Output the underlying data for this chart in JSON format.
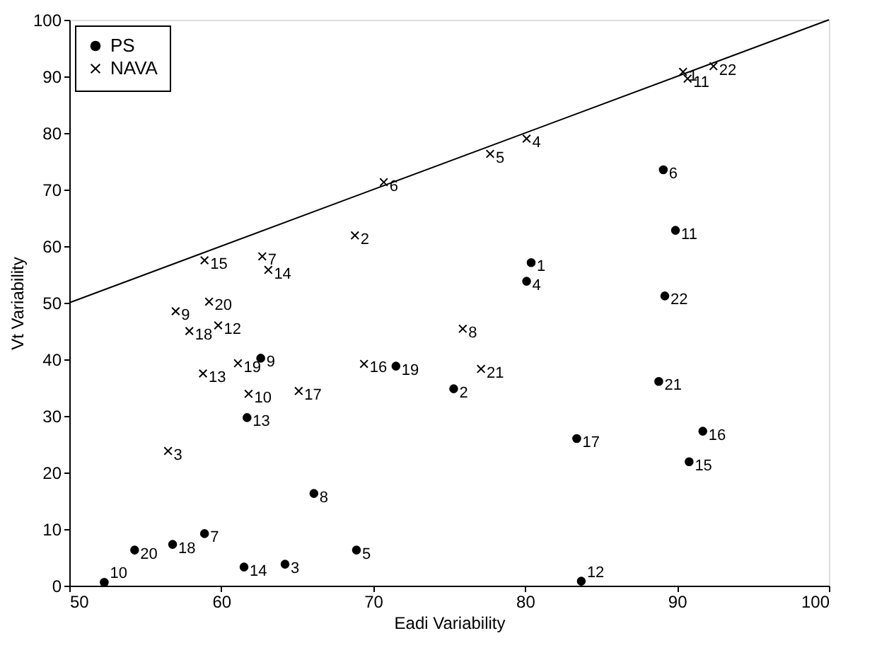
{
  "chart_data": {
    "type": "scatter",
    "xlabel": "Eadi Variability",
    "ylabel": "Vt Variability",
    "xlim": [
      50,
      100
    ],
    "ylim": [
      0,
      100
    ],
    "xticks": [
      50,
      60,
      70,
      80,
      90,
      100
    ],
    "yticks": [
      0,
      10,
      20,
      30,
      40,
      50,
      60,
      70,
      80,
      90,
      100
    ],
    "grid": false,
    "legend": "top left",
    "series": [
      {
        "name": "PS",
        "color": "#000000",
        "marker": "circle",
        "x": [
          80.4,
          75.3,
          64.2,
          80.1,
          68.9,
          89.1,
          58.9,
          66.1,
          62.6,
          52.3,
          89.9,
          83.7,
          61.7,
          61.5,
          90.8,
          91.7,
          83.4,
          56.8,
          71.5,
          54.3,
          88.8,
          89.2
        ],
        "values": [
          57.1,
          34.8,
          3.8,
          53.8,
          6.3,
          73.5,
          9.2,
          16.3,
          40.2,
          0.6,
          62.8,
          0.8,
          29.7,
          3.3,
          21.9,
          27.3,
          26,
          7.3,
          38.8,
          6.3,
          36.1,
          51.2
        ]
      },
      {
        "name": "NAVA",
        "color": "#000000",
        "marker": "cross",
        "x": [
          90.4,
          68.8,
          56.5,
          80.1,
          77.7,
          70.7,
          62.7,
          75.9,
          57.0,
          61.8,
          90.7,
          59.8,
          58.8,
          63.1,
          58.9,
          69.4,
          65.1,
          57.9,
          61.1,
          59.2,
          77.1,
          92.4
        ],
        "values": [
          90.8,
          61.9,
          23.8,
          79,
          76.3,
          71.3,
          58.2,
          45.4,
          48.5,
          33.9,
          89.6,
          46,
          37.5,
          55.8,
          57.5,
          39.2,
          34.4,
          45,
          39.3,
          50.2,
          38.3,
          91.8
        ]
      },
      {
        "type": "line",
        "color": "#000000",
        "x": [
          50,
          100
        ],
        "values": [
          50,
          100
        ]
      }
    ],
    "annotations": [
      {
        "text": "1",
        "x": 80.4,
        "y": 57.1
      },
      {
        "text": "2",
        "x": 75.3,
        "y": 34.8
      },
      {
        "text": "3",
        "x": 64.2,
        "y": 3.8
      },
      {
        "text": "4",
        "x": 80.1,
        "y": 53.8
      },
      {
        "text": "5",
        "x": 68.9,
        "y": 6.3
      },
      {
        "text": "6",
        "x": 89.1,
        "y": 73.5
      },
      {
        "text": "7",
        "x": 58.9,
        "y": 9.2
      },
      {
        "text": "8",
        "x": 66.1,
        "y": 16.3
      },
      {
        "text": "9",
        "x": 62.6,
        "y": 40.2
      },
      {
        "text": "10",
        "x": 52.3,
        "y": 0.6
      },
      {
        "text": "11",
        "x": 89.9,
        "y": 62.8
      },
      {
        "text": "12",
        "x": 83.7,
        "y": 0.8
      },
      {
        "text": "13",
        "x": 61.7,
        "y": 29.7
      },
      {
        "text": "14",
        "x": 61.5,
        "y": 3.3
      },
      {
        "text": "15",
        "x": 90.8,
        "y": 21.9
      },
      {
        "text": "16",
        "x": 91.7,
        "y": 27.3
      },
      {
        "text": "17",
        "x": 83.4,
        "y": 26
      },
      {
        "text": "18",
        "x": 56.8,
        "y": 7.3
      },
      {
        "text": "19",
        "x": 71.5,
        "y": 38.8
      },
      {
        "text": "20",
        "x": 54.3,
        "y": 6.3
      },
      {
        "text": "21",
        "x": 88.8,
        "y": 36.1
      },
      {
        "text": "22",
        "x": 89.2,
        "y": 51.2
      },
      {
        "text": "1",
        "x": 90.4,
        "y": 90.8
      },
      {
        "text": "2",
        "x": 68.8,
        "y": 61.9
      },
      {
        "text": "3",
        "x": 56.5,
        "y": 23.8
      },
      {
        "text": "4",
        "x": 80.1,
        "y": 79
      },
      {
        "text": "5",
        "x": 77.7,
        "y": 76.3
      },
      {
        "text": "6",
        "x": 70.7,
        "y": 71.3
      },
      {
        "text": "7",
        "x": 62.7,
        "y": 58.2
      },
      {
        "text": "8",
        "x": 75.9,
        "y": 45.4
      },
      {
        "text": "9",
        "x": 57.0,
        "y": 48.5
      },
      {
        "text": "10",
        "x": 61.8,
        "y": 33.9
      },
      {
        "text": "11",
        "x": 90.7,
        "y": 89.6
      },
      {
        "text": "12",
        "x": 59.8,
        "y": 46
      },
      {
        "text": "13",
        "x": 58.8,
        "y": 37.5
      },
      {
        "text": "14",
        "x": 63.1,
        "y": 55.8
      },
      {
        "text": "15",
        "x": 58.9,
        "y": 57.5
      },
      {
        "text": "16",
        "x": 69.4,
        "y": 39.2
      },
      {
        "text": "17",
        "x": 65.1,
        "y": 34.4
      },
      {
        "text": "18",
        "x": 57.9,
        "y": 45
      },
      {
        "text": "19",
        "x": 61.1,
        "y": 39.3
      },
      {
        "text": "20",
        "x": 59.2,
        "y": 50.2
      },
      {
        "text": "21",
        "x": 77.1,
        "y": 38.3
      },
      {
        "text": "22",
        "x": 92.4,
        "y": 91.8
      }
    ]
  }
}
